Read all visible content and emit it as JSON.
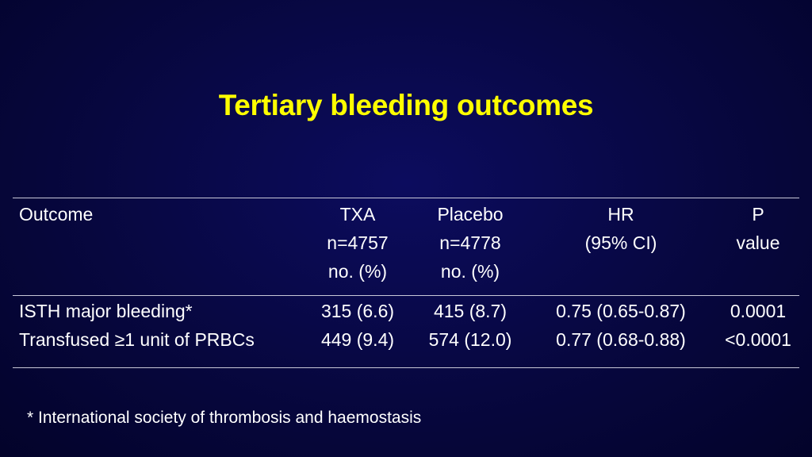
{
  "title": "Tertiary bleeding outcomes",
  "table": {
    "headers": [
      {
        "lines": [
          "Outcome"
        ]
      },
      {
        "lines": [
          "TXA",
          "n=4757",
          "no. (%)"
        ]
      },
      {
        "lines": [
          "Placebo",
          "n=4778",
          "no. (%)"
        ]
      },
      {
        "lines": [
          "HR",
          "(95% CI)"
        ]
      },
      {
        "lines": [
          "P",
          "value"
        ]
      }
    ],
    "rows": [
      [
        "ISTH major bleeding*",
        "315 (6.6)",
        "415 (8.7)",
        "0.75 (0.65-0.87)",
        "0.0001"
      ],
      [
        "Transfused ≥1 unit of PRBCs",
        "449 (9.4)",
        "574 (12.0)",
        "0.77 (0.68-0.88)",
        "<0.0001"
      ]
    ]
  },
  "footnote": "* International society of thrombosis and haemostasis",
  "colors": {
    "background": "#07073f",
    "title": "#ffff00",
    "text": "#ffffff",
    "rule": "#c8c8d8"
  }
}
